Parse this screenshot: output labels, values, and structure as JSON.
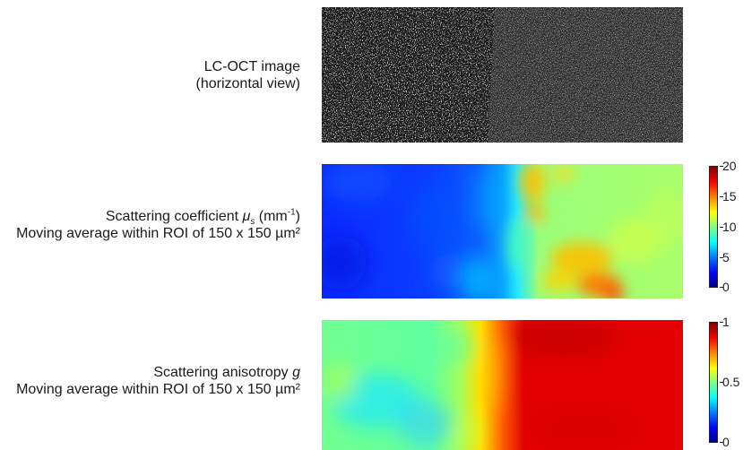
{
  "rows": [
    {
      "line1": "LC-OCT image",
      "line2": "(horizontal view)"
    },
    {
      "line1_prefix": "Scattering coefficient ",
      "line1_symbol": "μ",
      "line1_subscript": "s",
      "line1_unit_open": " (mm",
      "line1_unit_exp": "-1",
      "line1_unit_close": ")",
      "line2": "Moving average within ROI of 150 x 150 µm²"
    },
    {
      "line1_prefix": "Scattering anisotropy ",
      "line1_symbol": "g",
      "line2": "Moving average within ROI of 150 x 150 µm²"
    }
  ],
  "colorbars": {
    "scattering_coefficient": {
      "ticks": [
        "20",
        "15",
        "10",
        "5",
        "0"
      ],
      "range": [
        0,
        20
      ],
      "colormap": "jet"
    },
    "anisotropy": {
      "ticks": [
        "1",
        "0.5",
        "0"
      ],
      "range": [
        0,
        1
      ],
      "colormap": "jet"
    }
  },
  "colors": {
    "jet_low": "#00008f",
    "jet_mid": "#80ff80",
    "jet_high": "#800000",
    "oct_background": "#1b1b1b"
  }
}
